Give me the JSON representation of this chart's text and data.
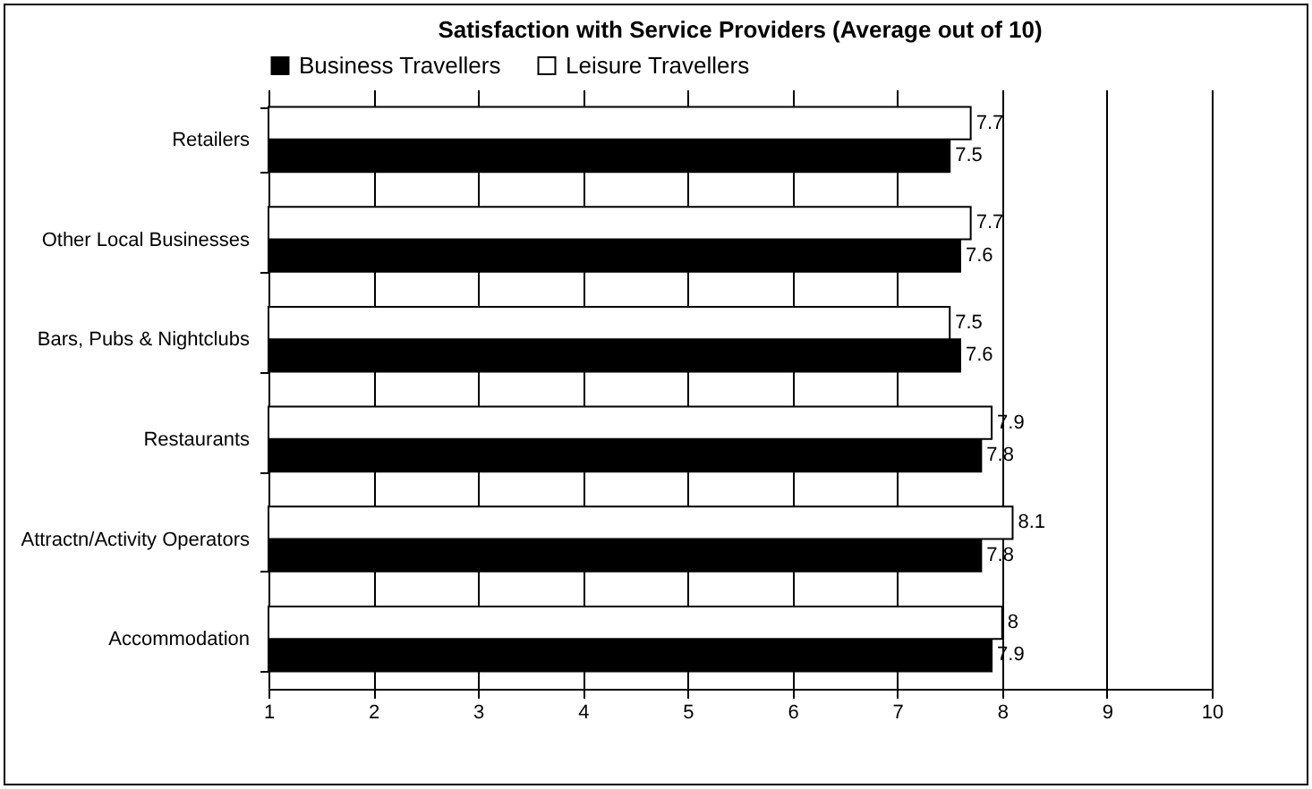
{
  "chart_data": {
    "type": "bar",
    "orientation": "horizontal",
    "title": "Satisfaction with Service Providers (Average out of 10)",
    "categories": [
      "Retailers",
      "Other Local Businesses",
      "Bars, Pubs & Nightclubs",
      "Restaurants",
      "Attractn/Activity Operators",
      "Accommodation"
    ],
    "series": [
      {
        "name": "Business Travellers",
        "color": "#000000",
        "values": [
          7.5,
          7.6,
          7.6,
          7.8,
          7.8,
          7.9
        ]
      },
      {
        "name": "Leisure Travellers",
        "color": "#ffffff",
        "values": [
          7.7,
          7.7,
          7.5,
          7.9,
          8.1,
          8
        ]
      }
    ],
    "xlim": [
      1,
      10
    ],
    "xticks": [
      1,
      2,
      3,
      4,
      5,
      6,
      7,
      8,
      9,
      10
    ],
    "grid": "x",
    "legend": "top",
    "data_labels": true
  }
}
